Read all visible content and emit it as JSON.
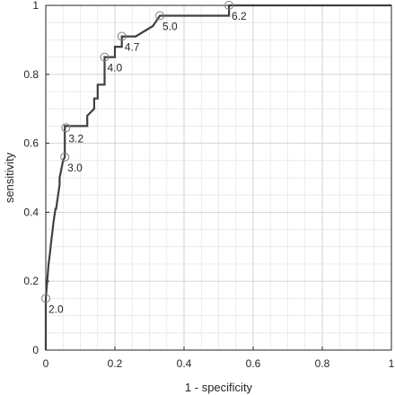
{
  "chart_data": {
    "type": "line",
    "title": "",
    "xlabel": "1 - specificity",
    "ylabel": "sensitivity",
    "xlim": [
      0,
      1
    ],
    "ylim": [
      0,
      1
    ],
    "xticks": [
      "0",
      "0.2",
      "0.4",
      "0.6",
      "0.8",
      "1"
    ],
    "yticks": [
      "0",
      "0.2",
      "0.4",
      "0.6",
      "0.8",
      "1"
    ],
    "x_tick_values": [
      0,
      0.2,
      0.4,
      0.6,
      0.8,
      1
    ],
    "y_tick_values": [
      0,
      0.2,
      0.4,
      0.6,
      0.8,
      1
    ],
    "grid": true,
    "grid_minor": true,
    "line_color": "#404040",
    "marker_color": "#808080",
    "series": [
      {
        "x": [
          0,
          0,
          0.005,
          0.008,
          0.012,
          0.015,
          0.02,
          0.022,
          0.028,
          0.03,
          0.04,
          0.04,
          0.05,
          0.055,
          0.055,
          0.06,
          0.09,
          0.12,
          0.12,
          0.14,
          0.14,
          0.15,
          0.15,
          0.17,
          0.17,
          0.2,
          0.2,
          0.22,
          0.22,
          0.26,
          0.31,
          0.33,
          0.53,
          0.53,
          1
        ],
        "y": [
          0,
          0.15,
          0.21,
          0.25,
          0.28,
          0.31,
          0.35,
          0.37,
          0.41,
          0.41,
          0.48,
          0.5,
          0.55,
          0.56,
          0.65,
          0.65,
          0.65,
          0.65,
          0.68,
          0.7,
          0.73,
          0.73,
          0.77,
          0.77,
          0.85,
          0.85,
          0.88,
          0.88,
          0.91,
          0.91,
          0.94,
          0.97,
          0.97,
          1.0,
          1.0
        ]
      }
    ],
    "annotations": [
      {
        "label": "2.0",
        "x": 0.0,
        "y": 0.15
      },
      {
        "label": "3.0",
        "x": 0.055,
        "y": 0.56
      },
      {
        "label": "3.2",
        "x": 0.058,
        "y": 0.645
      },
      {
        "label": "4.0",
        "x": 0.17,
        "y": 0.85
      },
      {
        "label": "4.7",
        "x": 0.22,
        "y": 0.91
      },
      {
        "label": "5.0",
        "x": 0.33,
        "y": 0.97
      },
      {
        "label": "6.2",
        "x": 0.53,
        "y": 1.0
      }
    ]
  }
}
